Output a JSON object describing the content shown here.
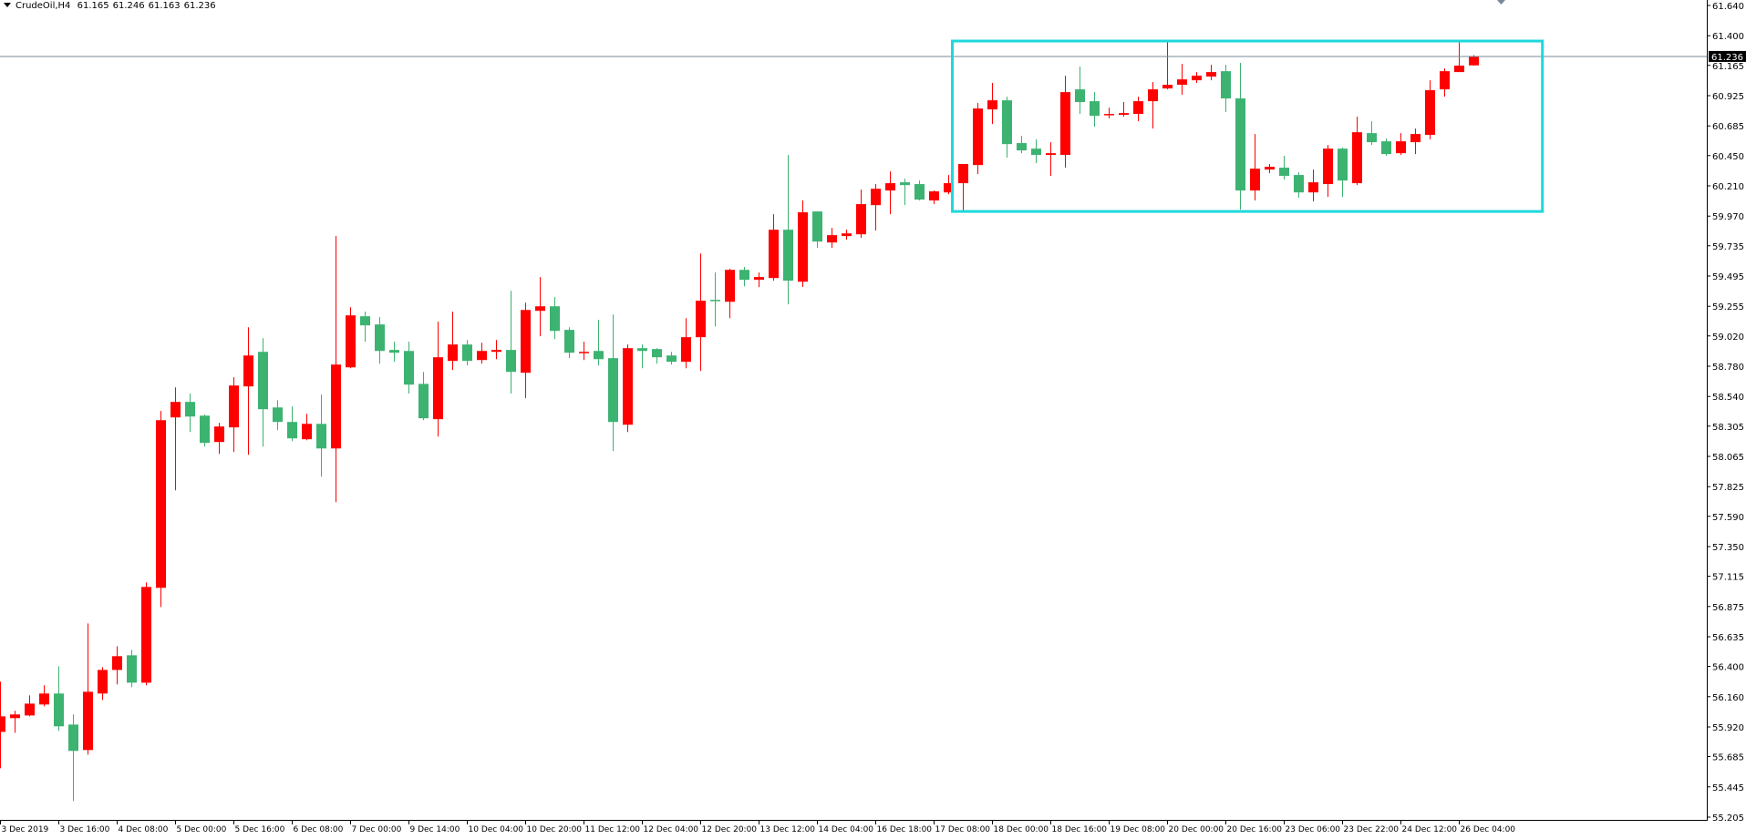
{
  "header": {
    "symbol": "CrudeOil,H4",
    "open": "61.165",
    "high": "61.246",
    "low": "61.163",
    "close": "61.236",
    "menu_icon": "triangle-down-icon"
  },
  "chart_data": {
    "type": "candlestick",
    "title": "",
    "timeframe": "H4",
    "colors": {
      "bull": "#ff0000",
      "bear": "#3cb371",
      "rectangle": "#1ed8dc",
      "price_line": "#778899",
      "axis": "#000000"
    },
    "ylim": [
      55.205,
      61.64
    ],
    "grid": false,
    "y_ticks": [
      "61.640",
      "61.400",
      "61.165",
      "60.925",
      "60.685",
      "60.450",
      "60.210",
      "59.970",
      "59.735",
      "59.495",
      "59.255",
      "59.020",
      "58.780",
      "58.540",
      "58.305",
      "58.065",
      "57.825",
      "57.590",
      "57.350",
      "57.115",
      "56.875",
      "56.635",
      "56.400",
      "56.160",
      "55.920",
      "55.685",
      "55.445",
      "55.205"
    ],
    "x_ticks": [
      {
        "bar": 0,
        "label": "3 Dec 2019"
      },
      {
        "bar": 4,
        "label": "3 Dec 16:00"
      },
      {
        "bar": 8,
        "label": "4 Dec 08:00"
      },
      {
        "bar": 12,
        "label": "5 Dec 00:00"
      },
      {
        "bar": 16,
        "label": "5 Dec 16:00"
      },
      {
        "bar": 20,
        "label": "6 Dec 08:00"
      },
      {
        "bar": 24,
        "label": "7 Dec 00:00"
      },
      {
        "bar": 28,
        "label": "9 Dec 14:00"
      },
      {
        "bar": 32,
        "label": "10 Dec 04:00"
      },
      {
        "bar": 36,
        "label": "10 Dec 20:00"
      },
      {
        "bar": 40,
        "label": "11 Dec 12:00"
      },
      {
        "bar": 44,
        "label": "12 Dec 04:00"
      },
      {
        "bar": 48,
        "label": "12 Dec 20:00"
      },
      {
        "bar": 52,
        "label": "13 Dec 12:00"
      },
      {
        "bar": 56,
        "label": "14 Dec 04:00"
      },
      {
        "bar": 60,
        "label": "16 Dec 18:00"
      },
      {
        "bar": 64,
        "label": "17 Dec 08:00"
      },
      {
        "bar": 68,
        "label": "18 Dec 00:00"
      },
      {
        "bar": 72,
        "label": "18 Dec 16:00"
      },
      {
        "bar": 76,
        "label": "19 Dec 08:00"
      },
      {
        "bar": 80,
        "label": "20 Dec 00:00"
      },
      {
        "bar": 84,
        "label": "20 Dec 16:00"
      },
      {
        "bar": 88,
        "label": "23 Dec 06:00"
      },
      {
        "bar": 92,
        "label": "23 Dec 22:00"
      },
      {
        "bar": 96,
        "label": "24 Dec 12:00"
      },
      {
        "bar": 100,
        "label": "26 Dec 04:00"
      }
    ],
    "current_price": {
      "value": 61.236,
      "label": "61.236"
    },
    "rectangle": {
      "start_bar": 65.25,
      "end_bar": 105.7,
      "price_top": 61.358,
      "price_bottom": 60.007
    },
    "ohlc": [
      [
        55.881,
        56.279,
        55.592,
        56.004
      ],
      [
        55.99,
        56.048,
        55.874,
        56.019
      ],
      [
        56.011,
        56.17,
        56.004,
        56.105
      ],
      [
        56.098,
        56.25,
        56.083,
        56.185
      ],
      [
        56.185,
        56.401,
        55.889,
        55.925
      ],
      [
        55.939,
        56.019,
        55.332,
        55.73
      ],
      [
        55.737,
        56.741,
        55.701,
        56.199
      ],
      [
        56.185,
        56.394,
        56.134,
        56.372
      ],
      [
        56.372,
        56.56,
        56.257,
        56.481
      ],
      [
        56.488,
        56.531,
        56.235,
        56.271
      ],
      [
        56.271,
        57.066,
        56.25,
        57.03
      ],
      [
        57.023,
        58.425,
        56.871,
        58.352
      ],
      [
        58.374,
        58.612,
        57.796,
        58.497
      ],
      [
        58.497,
        58.562,
        58.258,
        58.381
      ],
      [
        58.388,
        58.396,
        58.143,
        58.172
      ],
      [
        58.179,
        58.331,
        58.085,
        58.302
      ],
      [
        58.295,
        58.692,
        58.099,
        58.627
      ],
      [
        58.62,
        59.089,
        58.078,
        58.865
      ],
      [
        58.894,
        59.002,
        58.143,
        58.439
      ],
      [
        58.453,
        58.511,
        58.273,
        58.338
      ],
      [
        58.338,
        58.461,
        58.186,
        58.208
      ],
      [
        58.201,
        58.403,
        58.193,
        58.323
      ],
      [
        58.323,
        58.555,
        57.904,
        58.128
      ],
      [
        58.128,
        59.812,
        57.702,
        58.793
      ],
      [
        58.771,
        59.248,
        58.764,
        59.183
      ],
      [
        59.176,
        59.212,
        58.974,
        59.104
      ],
      [
        59.111,
        59.169,
        58.8,
        58.901
      ],
      [
        58.909,
        58.974,
        58.815,
        58.887
      ],
      [
        58.901,
        58.974,
        58.562,
        58.634
      ],
      [
        58.64,
        58.735,
        58.352,
        58.367
      ],
      [
        58.36,
        59.133,
        58.222,
        58.851
      ],
      [
        58.822,
        59.212,
        58.75,
        58.952
      ],
      [
        58.952,
        58.988,
        58.786,
        58.822
      ],
      [
        58.829,
        58.966,
        58.8,
        58.901
      ],
      [
        58.894,
        58.988,
        58.836,
        58.909
      ],
      [
        58.909,
        59.378,
        58.562,
        58.735
      ],
      [
        58.728,
        59.284,
        58.526,
        59.226
      ],
      [
        59.219,
        59.487,
        59.017,
        59.255
      ],
      [
        59.255,
        59.328,
        58.995,
        59.06
      ],
      [
        59.068,
        59.089,
        58.844,
        58.887
      ],
      [
        58.887,
        58.974,
        58.829,
        58.894
      ],
      [
        58.901,
        59.147,
        58.786,
        58.836
      ],
      [
        58.844,
        59.19,
        58.107,
        58.338
      ],
      [
        58.316,
        58.952,
        58.258,
        58.923
      ],
      [
        58.923,
        58.952,
        58.764,
        58.901
      ],
      [
        58.916,
        58.923,
        58.8,
        58.851
      ],
      [
        58.865,
        58.894,
        58.793,
        58.815
      ],
      [
        58.815,
        59.161,
        58.764,
        59.01
      ],
      [
        59.01,
        59.674,
        58.742,
        59.299
      ],
      [
        59.306,
        59.523,
        59.096,
        59.299
      ],
      [
        59.291,
        59.552,
        59.161,
        59.544
      ],
      [
        59.544,
        59.566,
        59.414,
        59.465
      ],
      [
        59.465,
        59.523,
        59.407,
        59.487
      ],
      [
        59.479,
        59.985,
        59.458,
        59.862
      ],
      [
        59.862,
        60.455,
        59.27,
        59.458
      ],
      [
        59.45,
        60.094,
        59.407,
        60.0
      ],
      [
        60.007,
        60.007,
        59.718,
        59.768
      ],
      [
        59.761,
        59.877,
        59.718,
        59.819
      ],
      [
        59.812,
        59.862,
        59.783,
        59.833
      ],
      [
        59.826,
        60.18,
        59.797,
        60.065
      ],
      [
        60.057,
        60.224,
        59.855,
        60.187
      ],
      [
        60.173,
        60.325,
        59.985,
        60.231
      ],
      [
        60.238,
        60.267,
        60.057,
        60.216
      ],
      [
        60.224,
        60.252,
        60.094,
        60.101
      ],
      [
        60.094,
        60.173,
        60.065,
        60.166
      ],
      [
        60.158,
        60.296,
        60.144,
        60.231
      ],
      [
        60.231,
        60.383,
        60.007,
        60.383
      ],
      [
        60.375,
        60.867,
        60.303,
        60.823
      ],
      [
        60.816,
        61.026,
        60.7,
        60.888
      ],
      [
        60.888,
        60.917,
        60.433,
        60.541
      ],
      [
        60.549,
        60.606,
        60.469,
        60.491
      ],
      [
        60.505,
        60.578,
        60.39,
        60.455
      ],
      [
        60.455,
        60.556,
        60.289,
        60.469
      ],
      [
        60.455,
        61.083,
        60.354,
        60.953
      ],
      [
        60.975,
        61.156,
        60.78,
        60.874
      ],
      [
        60.881,
        60.953,
        60.679,
        60.765
      ],
      [
        60.773,
        60.83,
        60.744,
        60.78
      ],
      [
        60.773,
        60.874,
        60.758,
        60.787
      ],
      [
        60.78,
        60.917,
        60.722,
        60.881
      ],
      [
        60.881,
        61.033,
        60.664,
        60.975
      ],
      [
        60.982,
        61.35,
        60.975,
        61.011
      ],
      [
        61.011,
        61.177,
        60.932,
        61.054
      ],
      [
        61.047,
        61.112,
        61.026,
        61.083
      ],
      [
        61.076,
        61.17,
        61.047,
        61.112
      ],
      [
        61.119,
        61.17,
        60.794,
        60.903
      ],
      [
        60.903,
        61.185,
        60.021,
        60.173
      ],
      [
        60.173,
        60.621,
        60.094,
        60.346
      ],
      [
        60.339,
        60.383,
        60.31,
        60.361
      ],
      [
        60.354,
        60.448,
        60.26,
        60.289
      ],
      [
        60.296,
        60.318,
        60.115,
        60.158
      ],
      [
        60.158,
        60.339,
        60.086,
        60.238
      ],
      [
        60.224,
        60.534,
        60.122,
        60.505
      ],
      [
        60.505,
        60.513,
        60.122,
        60.252
      ],
      [
        60.231,
        60.758,
        60.216,
        60.635
      ],
      [
        60.628,
        60.722,
        60.534,
        60.556
      ],
      [
        60.563,
        60.585,
        60.448,
        60.462
      ],
      [
        60.469,
        60.628,
        60.455,
        60.563
      ],
      [
        60.556,
        60.664,
        60.462,
        60.621
      ],
      [
        60.614,
        61.047,
        60.578,
        60.968
      ],
      [
        60.975,
        61.141,
        60.917,
        61.119
      ],
      [
        61.112,
        61.35,
        61.112,
        61.163
      ],
      [
        61.165,
        61.246,
        61.163,
        61.236
      ]
    ],
    "shift_marker_icon": "triangle-down-icon"
  }
}
